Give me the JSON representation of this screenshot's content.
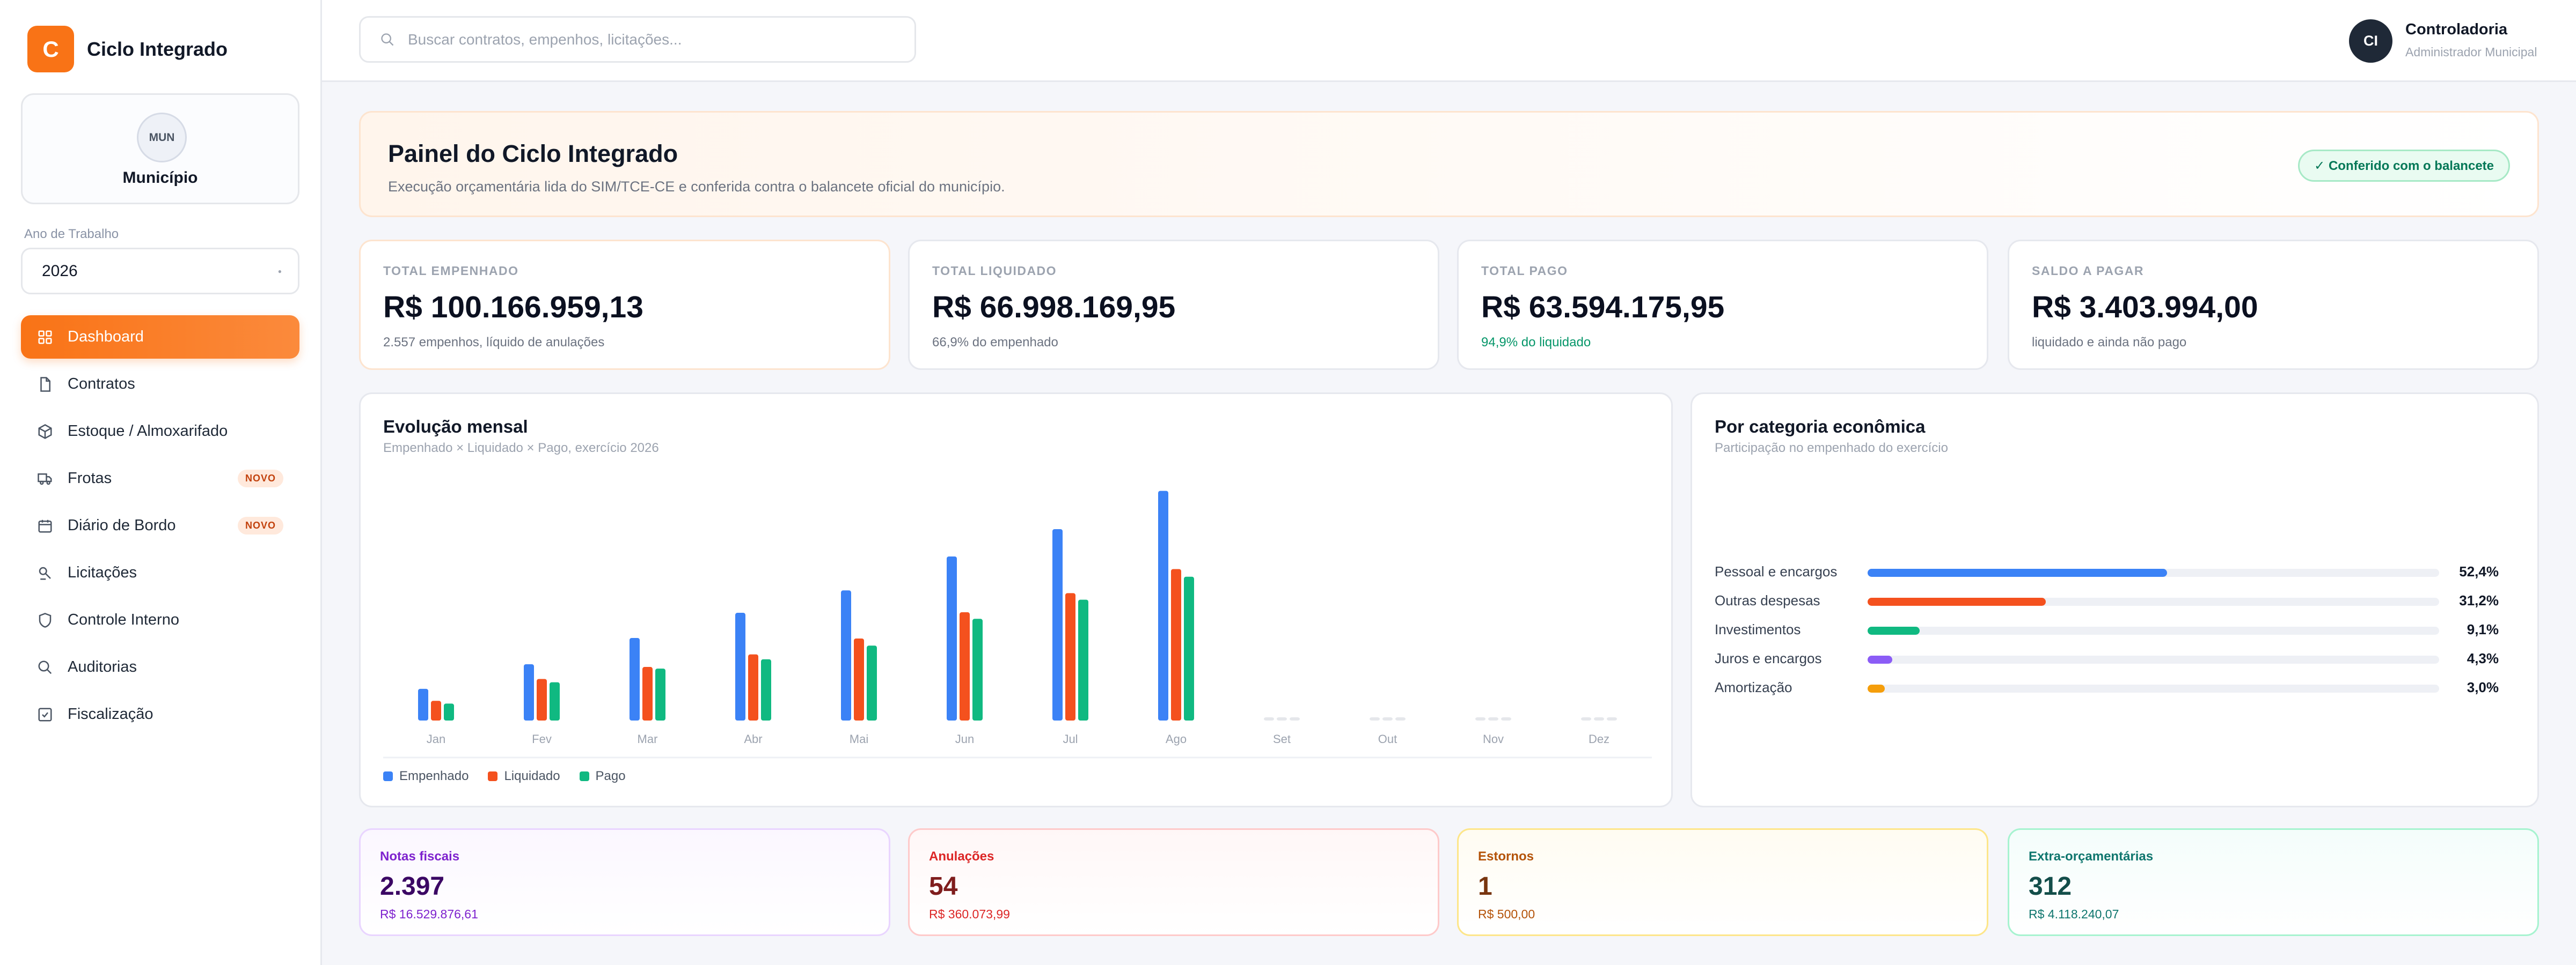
{
  "brand": {
    "logo_letter": "C",
    "name": "Ciclo Integrado"
  },
  "municipality": {
    "avatar_text": "MUN",
    "name": "Município"
  },
  "year": {
    "label": "Ano de Trabalho",
    "value": "2026"
  },
  "nav": {
    "items": [
      {
        "label": "Dashboard",
        "icon": "grid-icon",
        "active": true,
        "badge": ""
      },
      {
        "label": "Contratos",
        "icon": "document-icon",
        "badge": ""
      },
      {
        "label": "Estoque / Almoxarifado",
        "icon": "box-icon",
        "badge": ""
      },
      {
        "label": "Frotas",
        "icon": "truck-icon",
        "badge": "NOVO"
      },
      {
        "label": "Diário de Bordo",
        "icon": "calendar-icon",
        "badge": "NOVO"
      },
      {
        "label": "Licitações",
        "icon": "gavel-icon",
        "badge": ""
      },
      {
        "label": "Controle Interno",
        "icon": "shield-icon",
        "badge": ""
      },
      {
        "label": "Auditorias",
        "icon": "search-icon",
        "badge": ""
      },
      {
        "label": "Fiscalização",
        "icon": "checklist-icon",
        "badge": ""
      }
    ]
  },
  "search": {
    "placeholder": "Buscar contratos, empenhos, licitações..."
  },
  "user": {
    "initials": "CI",
    "name": "Controladoria",
    "role": "Administrador Municipal"
  },
  "hero": {
    "title": "Painel do Ciclo Integrado",
    "subtitle": "Execução orçamentária lida do SIM/TCE-CE e conferida contra o balancete oficial do município.",
    "badge": "✓ Conferido com o balancete"
  },
  "kpis": [
    {
      "label": "TOTAL EMPENHADO",
      "value": "R$ 100.166.959,13",
      "sub": "2.557 empenhos, líquido de anulações"
    },
    {
      "label": "TOTAL LIQUIDADO",
      "value": "R$ 66.998.169,95",
      "sub": "66,9% do empenhado"
    },
    {
      "label": "TOTAL PAGO",
      "value": "R$ 63.594.175,95",
      "sub": "94,9% do liquidado"
    },
    {
      "label": "SALDO A PAGAR",
      "value": "R$ 3.403.994,00",
      "sub": "liquidado e ainda não pago"
    }
  ],
  "monthly": {
    "title": "Evolução mensal",
    "subtitle": "Empenhado × Liquidado × Pago, exercício 2026",
    "legend": [
      "Empenhado",
      "Liquidado",
      "Pago"
    ]
  },
  "categories": {
    "title": "Por categoria econômica",
    "subtitle": "Participação no empenhado do exercício",
    "items": [
      {
        "name": "Pessoal e encargos",
        "pct_label": "52,4%",
        "pct": 52.4,
        "color": "#3b82f6"
      },
      {
        "name": "Outras despesas",
        "pct_label": "31,2%",
        "pct": 31.2,
        "color": "#f4511e"
      },
      {
        "name": "Investimentos",
        "pct_label": "9,1%",
        "pct": 9.1,
        "color": "#10b981"
      },
      {
        "name": "Juros e encargos",
        "pct_label": "4,3%",
        "pct": 4.3,
        "color": "#8b5cf6"
      },
      {
        "name": "Amortização",
        "pct_label": "3,0%",
        "pct": 3.0,
        "color": "#f59e0b"
      }
    ]
  },
  "bottom": [
    {
      "label": "Notas fiscais",
      "value": "2.397",
      "sub": "R$ 16.529.876,61",
      "color": "#7e22ce",
      "value_color": "#3b0764",
      "bg": "#fbf7ff",
      "border": "#e9d5ff"
    },
    {
      "label": "Anulações",
      "value": "54",
      "sub": "R$ 360.073,99",
      "color": "#dc2626",
      "value_color": "#7f1d1d",
      "bg": "#fff7f7",
      "border": "#fecaca"
    },
    {
      "label": "Estornos",
      "value": "1",
      "sub": "R$ 500,00",
      "color": "#b45309",
      "value_color": "#78350f",
      "bg": "#fffcf2",
      "border": "#fde68a"
    },
    {
      "label": "Extra-orçamentárias",
      "value": "312",
      "sub": "R$ 4.118.240,07",
      "color": "#0f766e",
      "value_color": "#134e4a",
      "bg": "#f4fdfb",
      "border": "#a7f3d0"
    }
  ],
  "chart_data": {
    "type": "bar",
    "categories": [
      "Jan",
      "Fev",
      "Mar",
      "Abr",
      "Mai",
      "Jun",
      "Jul",
      "Ago",
      "Set",
      "Out",
      "Nov",
      "Dez"
    ],
    "series": [
      {
        "name": "Empenhado",
        "color": "#3b82f6",
        "values": [
          5.8,
          10.3,
          15.1,
          19.7,
          23.8,
          30.0,
          35.0,
          42.0,
          0,
          0,
          0,
          0
        ]
      },
      {
        "name": "Liquidado",
        "color": "#f4511e",
        "values": [
          3.6,
          7.6,
          9.8,
          12.1,
          15.0,
          19.8,
          23.3,
          27.7,
          0,
          0,
          0,
          0
        ]
      },
      {
        "name": "Pago",
        "color": "#10b981",
        "values": [
          3.1,
          7.0,
          9.5,
          11.2,
          13.7,
          18.6,
          22.1,
          26.3,
          0,
          0,
          0,
          0
        ]
      }
    ],
    "ylim": [
      0,
      45
    ]
  }
}
